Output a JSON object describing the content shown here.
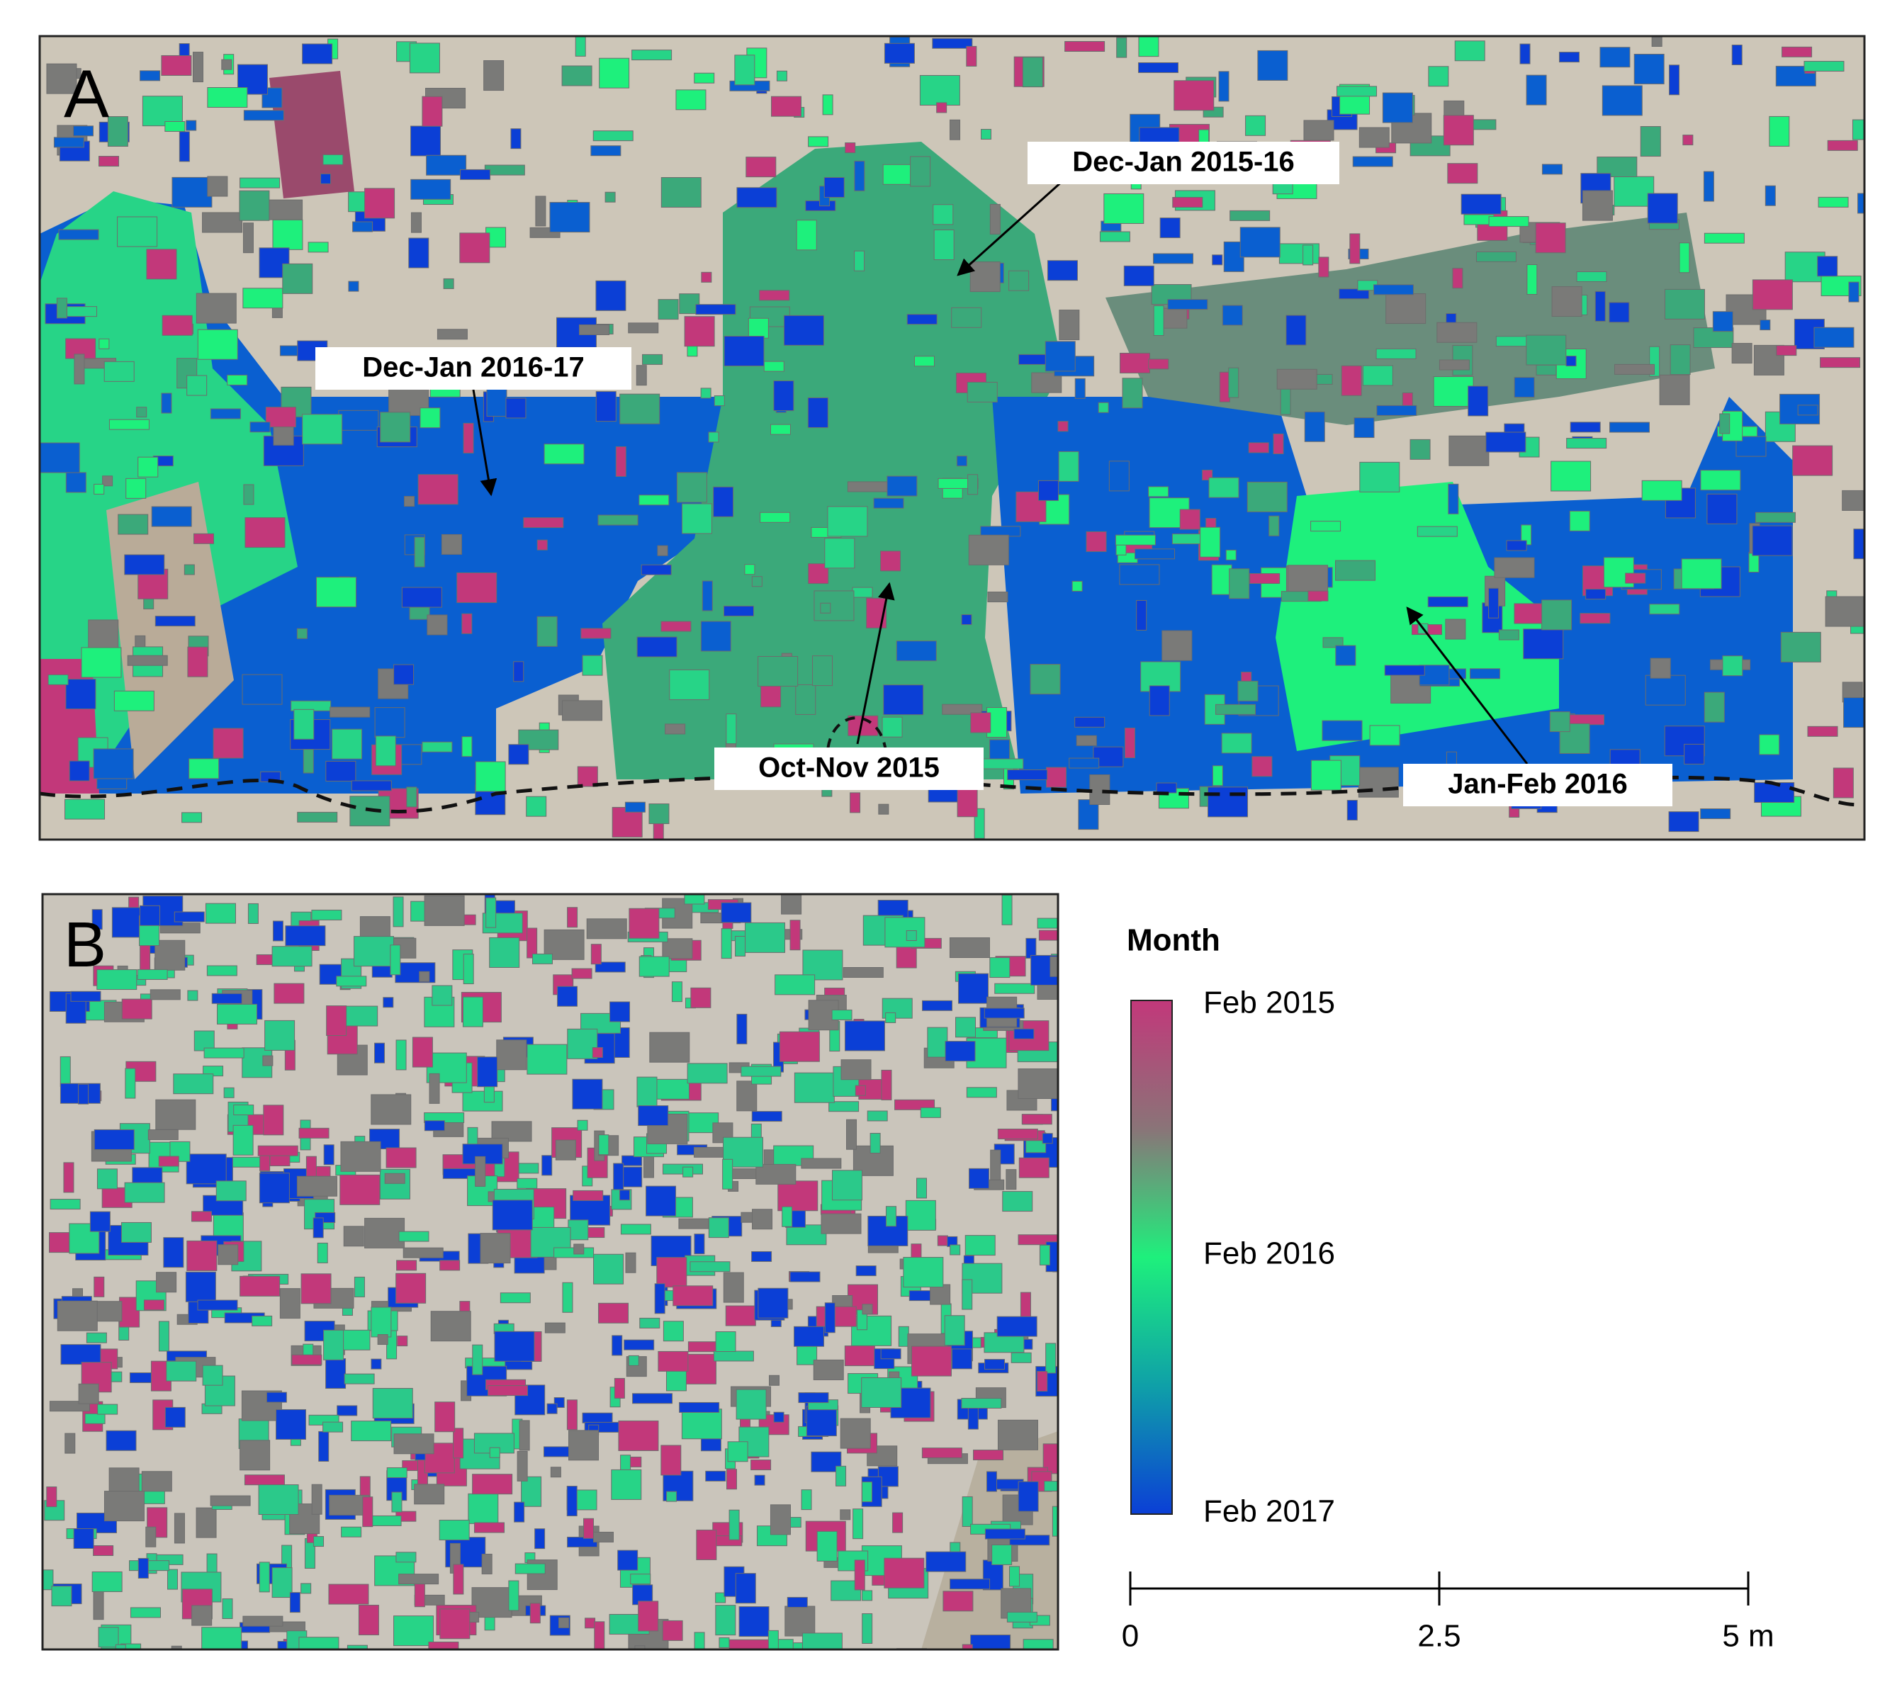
{
  "panels": [
    {
      "label": "A",
      "annotations": [
        "Dec-Jan 2015-16",
        "Dec-Jan 2016-17",
        "Oct-Nov 2015",
        "Jan-Feb 2016"
      ]
    },
    {
      "label": "B"
    }
  ],
  "legend": {
    "title": "Month",
    "labels": [
      "Feb 2015",
      "Feb 2016",
      "Feb 2017"
    ]
  },
  "scale_bar": {
    "ticks": [
      0,
      2.5,
      {
        "value": 5,
        "label": "5 m"
      }
    ],
    "range": [
      0,
      5
    ]
  }
}
